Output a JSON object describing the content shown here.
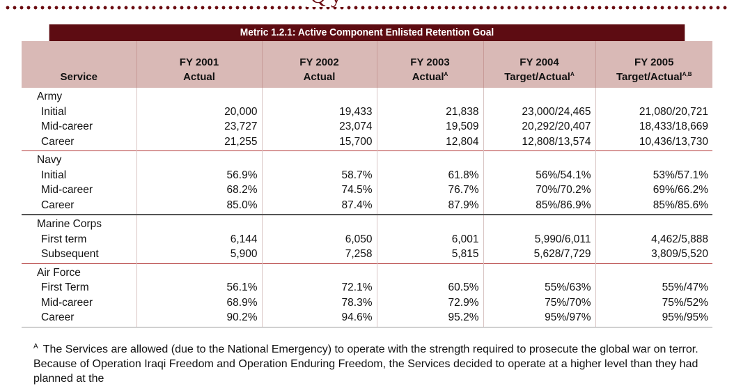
{
  "heading_fragment": "Q  y",
  "table": {
    "title": "Metric 1.2.1: Active Component Enlisted Retention Goal",
    "columns": [
      {
        "line1": "",
        "line2": "Service",
        "sup": ""
      },
      {
        "line1": "FY 2001",
        "line2": "Actual",
        "sup": ""
      },
      {
        "line1": "FY 2002",
        "line2": "Actual",
        "sup": ""
      },
      {
        "line1": "FY 2003",
        "line2": "Actual",
        "sup": "A"
      },
      {
        "line1": "FY 2004",
        "line2": "Target/Actual",
        "sup": "A"
      },
      {
        "line1": "FY 2005",
        "line2": "Target/Actual",
        "sup": "A,B"
      }
    ],
    "groups": [
      {
        "service": "Army",
        "rows": [
          {
            "label": "Initial",
            "values": [
              "20,000",
              "19,433",
              "21,838",
              "23,000/24,465",
              "21,080/20,721"
            ]
          },
          {
            "label": "Mid-career",
            "values": [
              "23,727",
              "23,074",
              "19,509",
              "20,292/20,407",
              "18,433/18,669"
            ]
          },
          {
            "label": "Career",
            "values": [
              "21,255",
              "15,700",
              "12,804",
              "12,808/13,574",
              "10,436/13,730"
            ]
          }
        ]
      },
      {
        "service": "Navy",
        "rows": [
          {
            "label": "Initial",
            "values": [
              "56.9%",
              "58.7%",
              "61.8%",
              "56%/54.1%",
              "53%/57.1%"
            ]
          },
          {
            "label": "Mid-career",
            "values": [
              "68.2%",
              "74.5%",
              "76.7%",
              "70%/70.2%",
              "69%/66.2%"
            ]
          },
          {
            "label": "Career",
            "values": [
              "85.0%",
              "87.4%",
              "87.9%",
              "85%/86.9%",
              "85%/85.6%"
            ]
          }
        ]
      },
      {
        "service": "Marine Corps",
        "rows": [
          {
            "label": "First term",
            "values": [
              "6,144",
              "6,050",
              "6,001",
              "5,990/6,011",
              "4,462/5,888"
            ]
          },
          {
            "label": "Subsequent",
            "values": [
              "5,900",
              "7,258",
              "5,815",
              "5,628/7,729",
              "3,809/5,520"
            ]
          }
        ]
      },
      {
        "service": "Air Force",
        "rows": [
          {
            "label": "First Term",
            "values": [
              "56.1%",
              "72.1%",
              "60.5%",
              "55%/63%",
              "55%/47%"
            ]
          },
          {
            "label": "Mid-career",
            "values": [
              "68.9%",
              "78.3%",
              "72.9%",
              "75%/70%",
              "75%/52%"
            ]
          },
          {
            "label": "Career",
            "values": [
              "90.2%",
              "94.6%",
              "95.2%",
              "95%/97%",
              "95%/95%"
            ]
          }
        ]
      }
    ]
  },
  "footnote": {
    "marker": "A",
    "text": "The Services are allowed (due to the National Emergency) to operate with the strength required to prosecute the global war on terror.  Because of Operation Iraqi Freedom and Operation Enduring Freedom, the Services decided to operate at a higher level than they had planned at the"
  }
}
